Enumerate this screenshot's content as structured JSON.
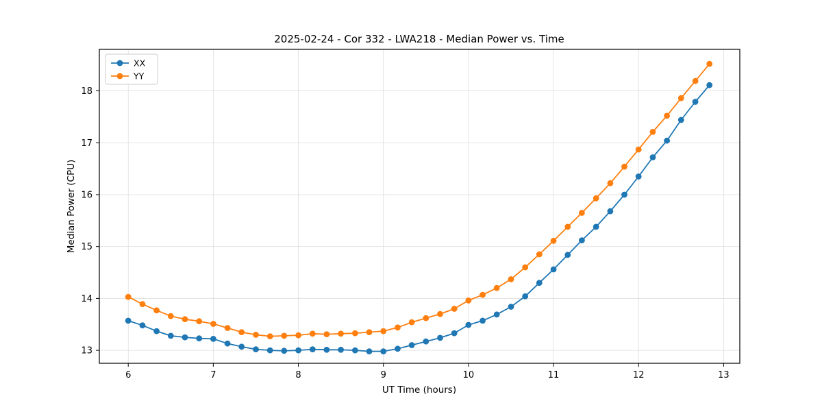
{
  "chart_data": {
    "type": "line",
    "title": "2025-02-24 - Cor 332 - LWA218 - Median Power vs. Time",
    "xlabel": "UT Time (hours)",
    "ylabel": "Median Power (CPU)",
    "xlim": [
      5.66,
      13.19
    ],
    "ylim": [
      12.75,
      18.8
    ],
    "xticks": [
      6,
      7,
      8,
      9,
      10,
      11,
      12,
      13
    ],
    "yticks": [
      13,
      14,
      15,
      16,
      17,
      18
    ],
    "grid": true,
    "legend_position": "upper left",
    "background_color": "#ffffff",
    "grid_color": "#e0e0e0",
    "x": [
      6.0,
      6.167,
      6.333,
      6.5,
      6.667,
      6.833,
      7.0,
      7.167,
      7.333,
      7.5,
      7.667,
      7.833,
      8.0,
      8.167,
      8.333,
      8.5,
      8.667,
      8.833,
      9.0,
      9.167,
      9.333,
      9.5,
      9.667,
      9.833,
      10.0,
      10.167,
      10.333,
      10.5,
      10.667,
      10.833,
      11.0,
      11.167,
      11.333,
      11.5,
      11.667,
      11.833,
      12.0,
      12.167,
      12.333,
      12.5,
      12.667,
      12.833
    ],
    "series": [
      {
        "name": "XX",
        "color": "#1f77b4",
        "values": [
          13.57,
          13.48,
          13.37,
          13.28,
          13.25,
          13.23,
          13.22,
          13.13,
          13.07,
          13.02,
          13.0,
          12.99,
          13.0,
          13.02,
          13.01,
          13.01,
          13.0,
          12.98,
          12.98,
          13.03,
          13.1,
          13.17,
          13.24,
          13.33,
          13.49,
          13.57,
          13.69,
          13.84,
          14.04,
          14.3,
          14.56,
          14.84,
          15.12,
          15.38,
          15.68,
          16.0,
          16.35,
          16.72,
          17.04,
          17.44,
          17.79,
          18.11
        ]
      },
      {
        "name": "YY",
        "color": "#ff7f0e",
        "values": [
          14.03,
          13.89,
          13.77,
          13.66,
          13.6,
          13.56,
          13.51,
          13.43,
          13.35,
          13.3,
          13.27,
          13.28,
          13.29,
          13.32,
          13.31,
          13.32,
          13.33,
          13.35,
          13.37,
          13.44,
          13.54,
          13.62,
          13.7,
          13.8,
          13.96,
          14.07,
          14.2,
          14.37,
          14.6,
          14.85,
          15.11,
          15.38,
          15.65,
          15.93,
          16.22,
          16.54,
          16.87,
          17.21,
          17.52,
          17.86,
          18.19,
          18.52
        ]
      }
    ]
  }
}
